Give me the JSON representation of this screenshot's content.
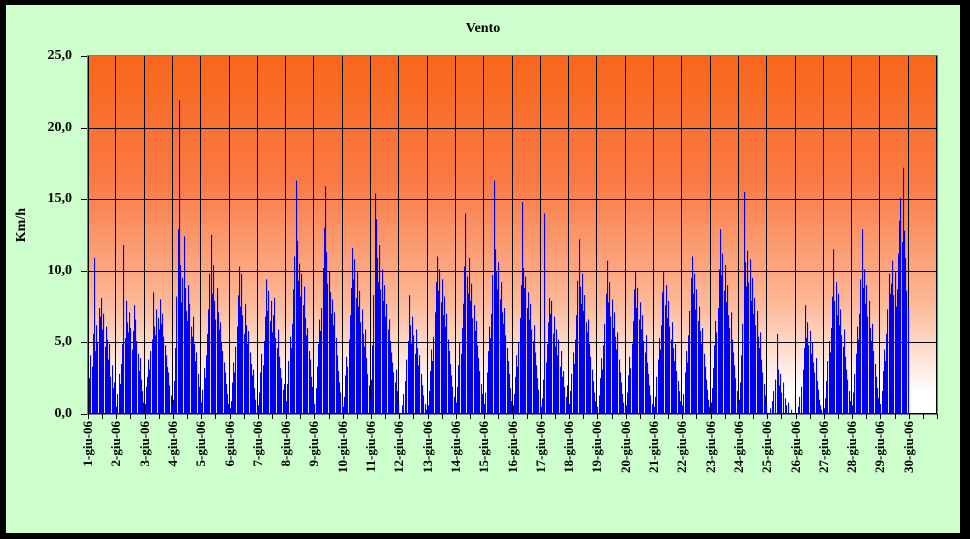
{
  "window": {
    "frame_color": "#000000",
    "background_color": "#CCFFCC"
  },
  "chart_data": {
    "type": "bar",
    "title": "Vento",
    "xlabel": "",
    "ylabel": "Km/h",
    "ylim": [
      0,
      25
    ],
    "grid": "on",
    "legend": "none",
    "y_ticks": [
      {
        "value": 0,
        "label": "0,0"
      },
      {
        "value": 5,
        "label": "5,0"
      },
      {
        "value": 10,
        "label": "10,0"
      },
      {
        "value": 15,
        "label": "15,0"
      },
      {
        "value": 20,
        "label": "20,0"
      },
      {
        "value": 25,
        "label": "25,0"
      }
    ],
    "categories": [
      "1-giu-06",
      "2-giu-06",
      "3-giu-06",
      "4-giu-06",
      "5-giu-06",
      "6-giu-06",
      "7-giu-06",
      "8-giu-06",
      "9-giu-06",
      "10-giu-06",
      "11-giu-06",
      "12-giu-06",
      "13-giu-06",
      "14-giu-06",
      "15-giu-06",
      "16-giu-06",
      "17-giu-06",
      "18-giu-06",
      "19-giu-06",
      "20-giu-06",
      "21-giu-06",
      "22-giu-06",
      "23-giu-06",
      "24-giu-06",
      "25-giu-06",
      "26-giu-06",
      "27-giu-06",
      "28-giu-06",
      "29-giu-06",
      "30-giu-06"
    ],
    "bars_per_category": 24,
    "minor_ticks_per_category": 2,
    "series": [
      {
        "name": "Vento",
        "unit": "Km/h",
        "values_by_day": [
          [
            1.2,
            2.5,
            4.1,
            3.3,
            5.6,
            10.9,
            4.4,
            6.2,
            5.0,
            7.4,
            6.8,
            8.1,
            5.9,
            7.0,
            4.7,
            6.1,
            5.2,
            3.8,
            4.9,
            2.6,
            3.4,
            1.8,
            2.2,
            0.9
          ],
          [
            0.5,
            1.4,
            2.8,
            2.1,
            3.5,
            4.9,
            11.8,
            5.3,
            7.9,
            6.4,
            5.7,
            7.1,
            6.0,
            4.5,
            5.8,
            7.6,
            6.6,
            5.1,
            4.2,
            3.0,
            3.9,
            2.4,
            1.6,
            0.8
          ],
          [
            0.7,
            1.9,
            2.6,
            3.8,
            3.1,
            4.4,
            5.2,
            8.5,
            6.1,
            5.5,
            7.3,
            6.7,
            5.9,
            8.0,
            6.3,
            7.0,
            5.4,
            4.8,
            4.1,
            3.3,
            2.9,
            2.0,
            1.3,
            0.6
          ],
          [
            1.0,
            2.3,
            4.6,
            8.2,
            12.9,
            21.9,
            10.4,
            7.8,
            9.5,
            12.4,
            8.8,
            7.2,
            6.5,
            9.0,
            7.7,
            6.1,
            5.4,
            6.8,
            4.9,
            3.7,
            4.3,
            2.8,
            1.9,
            1.1
          ],
          [
            0.8,
            1.7,
            3.2,
            2.5,
            4.1,
            5.6,
            7.3,
            9.8,
            12.5,
            8.4,
            10.4,
            7.9,
            6.6,
            8.8,
            7.1,
            5.9,
            6.4,
            5.0,
            4.4,
            3.6,
            2.9,
            2.1,
            1.4,
            0.7
          ],
          [
            0.4,
            0.9,
            2.2,
            3.6,
            2.9,
            4.7,
            6.1,
            8.3,
            10.3,
            7.5,
            9.8,
            6.9,
            5.6,
            7.7,
            6.2,
            4.9,
            5.8,
            4.3,
            3.5,
            2.7,
            3.1,
            1.8,
            1.0,
            0.5
          ],
          [
            0.6,
            1.5,
            2.9,
            4.2,
            3.4,
            5.1,
            6.8,
            9.4,
            7.2,
            8.6,
            6.5,
            7.9,
            5.7,
            6.9,
            8.1,
            5.3,
            4.6,
            5.9,
            4.0,
            3.2,
            2.5,
            1.7,
            2.1,
            0.9
          ],
          [
            0.9,
            2.1,
            3.7,
            5.4,
            4.6,
            6.3,
            8.7,
            11.0,
            16.3,
            12.1,
            9.3,
            10.5,
            8.2,
            9.8,
            7.6,
            8.9,
            6.7,
            5.5,
            6.0,
            4.4,
            3.8,
            2.6,
            1.9,
            1.0
          ],
          [
            0.7,
            1.8,
            3.3,
            4.9,
            6.6,
            5.8,
            7.4,
            10.2,
            13.0,
            15.9,
            11.3,
            9.1,
            10.0,
            8.5,
            7.0,
            8.0,
            6.2,
            7.1,
            5.3,
            4.1,
            3.0,
            2.2,
            1.5,
            0.8
          ],
          [
            0.5,
            1.2,
            2.7,
            4.0,
            3.3,
            5.2,
            6.9,
            8.8,
            11.6,
            9.4,
            10.8,
            8.1,
            9.9,
            7.5,
            8.6,
            6.4,
            7.3,
            5.6,
            4.7,
            5.9,
            3.9,
            2.8,
            2.0,
            1.1
          ],
          [
            2.4,
            4.8,
            8.3,
            15.4,
            13.6,
            10.9,
            9.2,
            11.8,
            8.7,
            10.1,
            7.9,
            9.0,
            6.8,
            7.7,
            5.9,
            6.6,
            5.1,
            4.3,
            3.6,
            2.9,
            2.2,
            3.1,
            1.6,
            0.8
          ],
          [
            0.0,
            0.0,
            0.6,
            1.4,
            0.0,
            2.3,
            3.8,
            5.1,
            8.3,
            6.2,
            4.9,
            6.8,
            5.5,
            4.2,
            5.9,
            4.6,
            3.4,
            4.1,
            2.8,
            2.0,
            1.3,
            0.0,
            0.7,
            0.3
          ],
          [
            0.6,
            1.6,
            3.0,
            4.5,
            3.7,
            5.4,
            7.1,
            9.2,
            11.0,
            8.6,
            10.1,
            7.8,
            9.4,
            6.9,
            8.2,
            6.1,
            7.0,
            5.2,
            4.4,
            3.5,
            2.7,
            1.9,
            1.2,
            0.6
          ],
          [
            0.8,
            1.9,
            3.4,
            5.0,
            4.2,
            6.0,
            7.7,
            10.3,
            14.0,
            9.6,
            8.4,
            10.9,
            7.9,
            9.1,
            6.7,
            7.6,
            5.8,
            6.5,
            4.8,
            3.9,
            3.0,
            2.1,
            1.4,
            0.7
          ],
          [
            0.7,
            1.5,
            2.9,
            4.4,
            6.1,
            5.3,
            7.0,
            9.7,
            16.3,
            11.5,
            9.9,
            8.7,
            10.6,
            8.0,
            9.2,
            7.1,
            6.3,
            7.4,
            5.5,
            4.6,
            3.7,
            2.8,
            1.8,
            0.9
          ],
          [
            0.6,
            1.4,
            2.6,
            4.1,
            3.3,
            5.0,
            6.7,
            9.0,
            14.8,
            10.2,
            8.8,
            9.6,
            7.4,
            8.5,
            6.6,
            7.7,
            5.9,
            5.1,
            6.2,
            4.3,
            3.4,
            2.5,
            1.7,
            0.8
          ],
          [
            0.5,
            1.1,
            2.4,
            14.0,
            3.6,
            4.9,
            6.4,
            8.1,
            7.0,
            7.9,
            5.6,
            6.8,
            4.7,
            5.9,
            4.1,
            5.2,
            3.3,
            4.4,
            2.6,
            3.0,
            1.9,
            1.2,
            2.0,
            0.6
          ],
          [
            0.7,
            1.6,
            2.8,
            4.3,
            3.5,
            5.2,
            6.9,
            9.3,
            12.2,
            8.9,
            7.7,
            9.8,
            7.2,
            8.3,
            6.4,
            5.7,
            6.6,
            4.9,
            4.0,
            3.1,
            2.3,
            1.5,
            0.9,
            0.4
          ],
          [
            0.5,
            1.3,
            2.5,
            3.9,
            3.1,
            4.8,
            6.3,
            8.4,
            10.7,
            7.8,
            9.2,
            6.8,
            8.0,
            6.0,
            7.1,
            5.4,
            4.5,
            5.7,
            3.8,
            2.9,
            2.2,
            1.4,
            0.8,
            0.4
          ],
          [
            0.6,
            1.5,
            2.7,
            4.0,
            3.2,
            4.9,
            6.5,
            8.7,
            9.9,
            7.4,
            8.8,
            6.6,
            7.8,
            5.9,
            6.9,
            5.1,
            4.3,
            5.5,
            3.6,
            2.8,
            2.0,
            1.3,
            0.7,
            0.3
          ],
          [
            0.5,
            1.2,
            2.6,
            3.8,
            5.3,
            4.5,
            6.2,
            8.5,
            9.9,
            7.6,
            9.0,
            6.7,
            7.9,
            6.1,
            5.2,
            6.4,
            4.6,
            3.7,
            4.9,
            3.0,
            2.3,
            1.6,
            0.9,
            0.5
          ],
          [
            0.6,
            1.4,
            2.9,
            4.4,
            3.6,
            5.5,
            7.2,
            9.5,
            11.0,
            8.4,
            9.8,
            7.3,
            8.7,
            6.5,
            7.5,
            5.8,
            4.9,
            6.0,
            4.2,
            3.3,
            2.4,
            1.7,
            1.0,
            0.5
          ],
          [
            0.8,
            1.8,
            3.2,
            4.8,
            6.5,
            5.7,
            7.4,
            10.1,
            12.9,
            9.7,
            11.2,
            8.6,
            10.4,
            7.8,
            9.0,
            6.9,
            6.0,
            7.1,
            5.2,
            4.3,
            3.4,
            2.5,
            1.6,
            0.8
          ],
          [
            1.0,
            2.2,
            4.1,
            6.3,
            15.5,
            10.6,
            8.9,
            11.4,
            9.2,
            10.8,
            7.9,
            9.5,
            7.0,
            8.1,
            6.2,
            7.2,
            5.4,
            4.6,
            5.7,
            3.8,
            2.9,
            2.1,
            1.3,
            0.6
          ],
          [
            0.0,
            0.0,
            0.4,
            0.0,
            0.9,
            1.6,
            0.0,
            2.4,
            5.6,
            3.1,
            2.0,
            2.8,
            1.5,
            2.2,
            0.0,
            1.1,
            0.6,
            0.0,
            0.8,
            0.0,
            0.3,
            0.0,
            0.0,
            0.0
          ],
          [
            0.0,
            0.0,
            0.5,
            1.2,
            0.0,
            1.9,
            3.1,
            4.6,
            7.6,
            5.3,
            6.4,
            4.8,
            5.8,
            4.2,
            5.0,
            3.6,
            2.9,
            3.9,
            2.3,
            1.7,
            1.0,
            0.6,
            0.3,
            0.0
          ],
          [
            0.4,
            1.1,
            2.3,
            3.7,
            5.1,
            4.3,
            6.0,
            8.2,
            11.5,
            7.9,
            9.2,
            6.9,
            8.4,
            6.2,
            7.3,
            5.5,
            4.7,
            5.9,
            4.0,
            3.1,
            2.4,
            1.6,
            0.9,
            0.4
          ],
          [
            0.6,
            1.5,
            2.8,
            4.2,
            6.1,
            5.2,
            7.0,
            9.4,
            12.9,
            8.8,
            10.1,
            7.7,
            9.0,
            6.8,
            7.9,
            6.0,
            5.1,
            6.3,
            4.4,
            3.5,
            2.6,
            1.8,
            1.1,
            0.5
          ],
          [
            0.7,
            1.6,
            3.0,
            4.5,
            3.7,
            5.6,
            7.3,
            9.8,
            8.4,
            9.1,
            10.7,
            8.3,
            9.9,
            7.5,
            8.7,
            11.2,
            13.5,
            15.1,
            12.0,
            17.2,
            12.8,
            10.9,
            8.6,
            7.4
          ],
          [
            0.0,
            0.0,
            0.0,
            0.0,
            0.0,
            0.0,
            0.0,
            0.0,
            0.0,
            0.0,
            0.0,
            0.0,
            0.0,
            0.0,
            0.0,
            0.0,
            0.0,
            0.0,
            0.0,
            0.0,
            0.0,
            0.0,
            0.0,
            0.0
          ]
        ]
      }
    ],
    "colors": {
      "bar": "#0000F2",
      "plot_gradient_top": "#F8661A",
      "plot_gradient_bottom": "#FFFFFF",
      "grid": "#000000",
      "axis": "#000000",
      "plot_border": "#7D7D7D",
      "background": "#CCFFCC",
      "text": "#000000"
    }
  }
}
